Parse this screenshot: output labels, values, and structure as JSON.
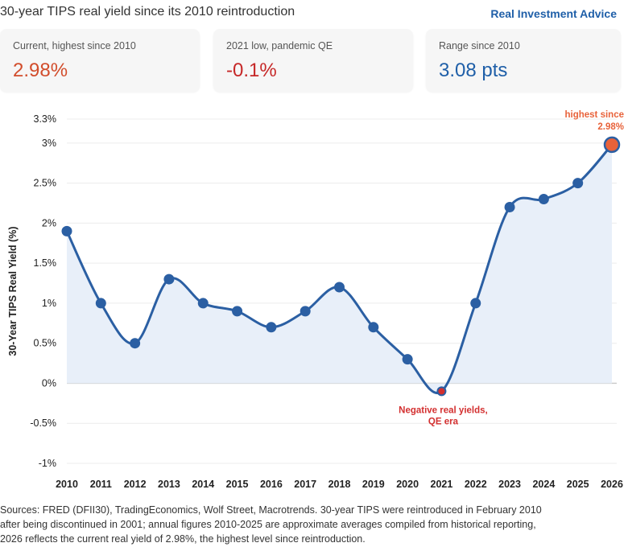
{
  "header": {
    "title": "30-year TIPS real yield since its 2010 reintroduction",
    "brand": "Real Investment Advice"
  },
  "cards": [
    {
      "label": "Current, highest since 2010",
      "value": "2.98%",
      "color": "#d24d2c"
    },
    {
      "label": "2021 low, pandemic QE",
      "value": "-0.1%",
      "color": "#c62828"
    },
    {
      "label": "Range since 2010",
      "value": "3.08 pts",
      "color": "#1f5fa8"
    }
  ],
  "chart_data": {
    "type": "line",
    "x": [
      "2010",
      "2011",
      "2012",
      "2013",
      "2014",
      "2015",
      "2016",
      "2017",
      "2018",
      "2019",
      "2020",
      "2021",
      "2022",
      "2023",
      "2024",
      "2025",
      "2026"
    ],
    "series": [
      {
        "values": [
          1.9,
          1.0,
          0.5,
          1.3,
          1.0,
          0.9,
          0.7,
          0.9,
          1.2,
          0.7,
          0.3,
          -0.1,
          1.0,
          2.2,
          2.3,
          2.5,
          2.98
        ]
      }
    ],
    "ylabel": "30-Year TIPS Real Yield (%)",
    "xlabel": "",
    "ylim": [
      -1,
      3.3
    ],
    "yticks": [
      "-1%",
      "-0.5%",
      "0%",
      "0.5%",
      "1%",
      "1.5%",
      "2%",
      "2.5%",
      "3%",
      "3.3%"
    ],
    "ytick_values": [
      -1,
      -0.5,
      0,
      0.5,
      1,
      1.5,
      2,
      2.5,
      3,
      3.3
    ],
    "grid": "horizontal",
    "line_color": "#2b5fa3",
    "fill_color": "#e8eff9",
    "annotations": [
      {
        "x": "2021",
        "text_lines": [
          "Negative real yields,",
          "QE era"
        ],
        "color": "#d32f2f"
      },
      {
        "x": "2026",
        "text_lines": [
          "highest since",
          "2.98%"
        ],
        "color": "#e8623a"
      }
    ]
  },
  "footer": {
    "lines": [
      "Sources: FRED (DFII30), TradingEconomics, Wolf Street, Macrotrends. 30-year TIPS were reintroduced in February 2010",
      "after being discontinued in 2001; annual figures 2010-2025 are approximate averages compiled from historical reporting,",
      "2026 reflects the current real yield of 2.98%, the highest level since reintroduction."
    ]
  }
}
